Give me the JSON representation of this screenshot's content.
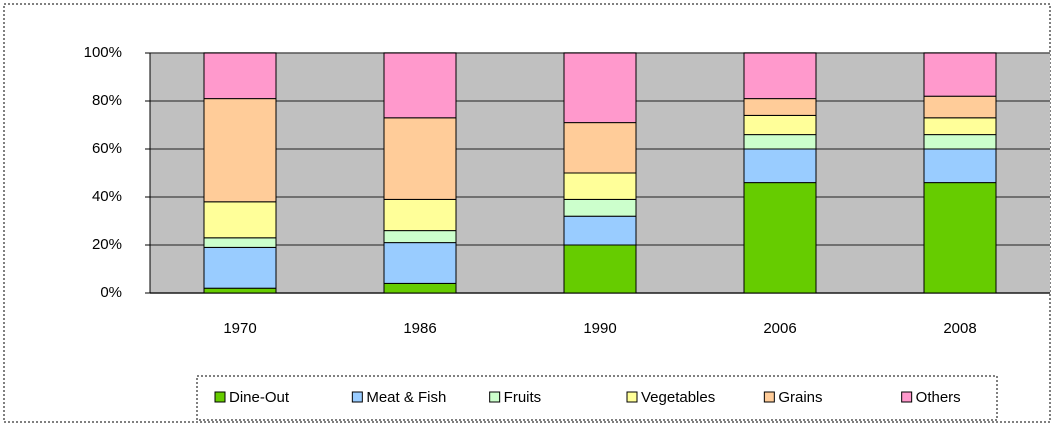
{
  "chart_data": {
    "type": "bar",
    "stacked": true,
    "categories": [
      "1970",
      "1986",
      "1990",
      "2006",
      "2008"
    ],
    "series": [
      {
        "name": "Dine-Out",
        "color": "#66cc00",
        "values": [
          2,
          4,
          20,
          46,
          46
        ]
      },
      {
        "name": "Meat & Fish",
        "color": "#99ccff",
        "values": [
          17,
          17,
          12,
          14,
          14
        ]
      },
      {
        "name": "Fruits",
        "color": "#ccffcc",
        "values": [
          4,
          5,
          7,
          6,
          6
        ]
      },
      {
        "name": "Vegetables",
        "color": "#ffff99",
        "values": [
          15,
          13,
          11,
          8,
          7
        ]
      },
      {
        "name": "Grains",
        "color": "#ffcc99",
        "values": [
          43,
          34,
          21,
          7,
          9
        ]
      },
      {
        "name": "Others",
        "color": "#ff99cc",
        "values": [
          19,
          27,
          29,
          19,
          18
        ]
      }
    ],
    "ylim": [
      0,
      100
    ],
    "yticks": [
      {
        "value": 0,
        "label": "0%"
      },
      {
        "value": 20,
        "label": "20%"
      },
      {
        "value": 40,
        "label": "40%"
      },
      {
        "value": 60,
        "label": "60%"
      },
      {
        "value": 80,
        "label": "80%"
      },
      {
        "value": 100,
        "label": "100%"
      }
    ],
    "grid": true,
    "legend": "bottom"
  }
}
